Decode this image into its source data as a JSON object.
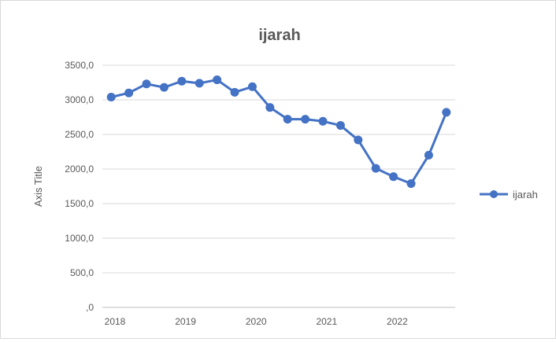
{
  "chart_data": {
    "type": "line",
    "title": "ijarah",
    "ylabel": "Axis Title",
    "xlabel": "",
    "ylim": [
      0,
      3500
    ],
    "y_ticks": [
      "3500,0",
      "3000,0",
      "2500,0",
      "2000,0",
      "1500,0",
      "1000,0",
      "500,0",
      ",0"
    ],
    "y_tick_values": [
      3500,
      3000,
      2500,
      2000,
      1500,
      1000,
      500,
      0
    ],
    "x_tick_labels": [
      "2018",
      "2019",
      "2020",
      "2021",
      "2022"
    ],
    "grid": "horizontal",
    "legend": "right",
    "series": [
      {
        "name": "ijarah",
        "color": "#4472c4",
        "values": [
          3040,
          3100,
          3230,
          3180,
          3270,
          3240,
          3290,
          3110,
          3190,
          2890,
          2720,
          2720,
          2690,
          2630,
          2420,
          2010,
          1890,
          1790,
          2200,
          2820
        ]
      }
    ]
  }
}
